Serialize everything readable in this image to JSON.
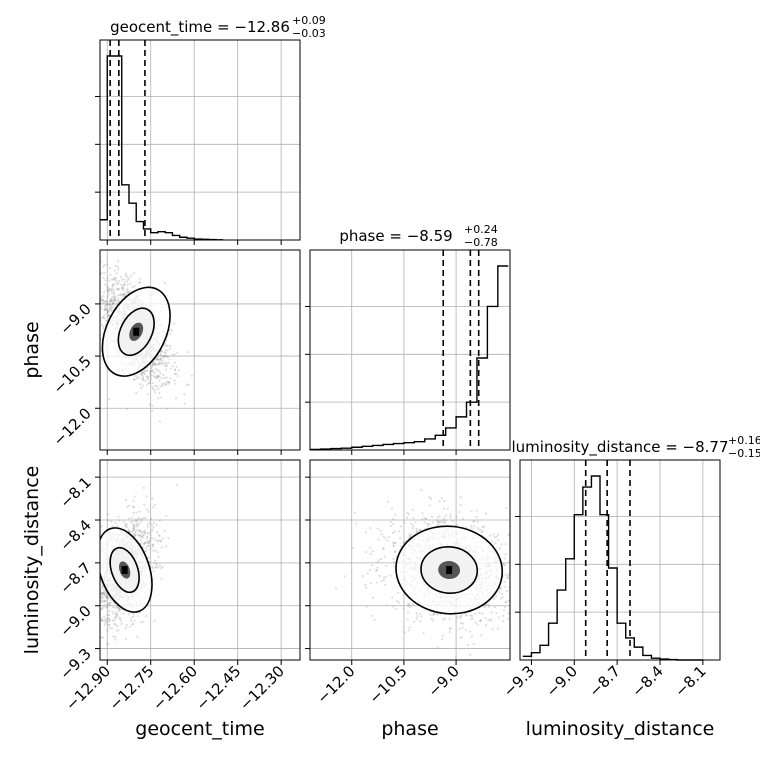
{
  "chart_data": {
    "type": "corner",
    "parameters": [
      "geocent_time",
      "phase",
      "luminosity_distance"
    ],
    "axis_labels": {
      "geocent_time": "geocent_time",
      "phase": "phase",
      "luminosity_distance": "luminosity_distance"
    },
    "titles": [
      {
        "param": "geocent_time",
        "text": "geocent_time = −12.86",
        "plus": "+0.09",
        "minus": "−0.03"
      },
      {
        "param": "phase",
        "text": "phase = −8.59",
        "plus": "+0.24",
        "minus": "−0.78"
      },
      {
        "param": "luminosity_distance",
        "text": "luminosity_distance = −8.77",
        "plus": "+0.16",
        "minus": "−0.15"
      }
    ],
    "ranges": {
      "geocent_time": [
        -12.925,
        -12.235
      ],
      "phase": [
        -13.2,
        -7.45
      ],
      "luminosity_distance": [
        -9.38,
        -7.98
      ]
    },
    "ticks": {
      "geocent_time": {
        "values": [
          -12.9,
          -12.75,
          -12.6,
          -12.45,
          -12.3
        ],
        "labels": [
          "−12.90",
          "−12.75",
          "−12.60",
          "−12.45",
          "−12.30"
        ]
      },
      "phase": {
        "values": [
          -12.0,
          -10.5,
          -9.0
        ],
        "labels": [
          "−12.0",
          "−10.5",
          "−9.0"
        ]
      },
      "luminosity_distance": {
        "values": [
          -9.3,
          -9.0,
          -8.7,
          -8.4,
          -8.1
        ],
        "labels": [
          "−9.3",
          "−9.0",
          "−8.7",
          "−8.4",
          "−8.1"
        ]
      }
    },
    "histograms": {
      "geocent_time": {
        "bin_edges": [
          -12.925,
          -12.9,
          -12.875,
          -12.85,
          -12.825,
          -12.8,
          -12.775,
          -12.75,
          -12.725,
          -12.7,
          -12.675,
          -12.65,
          -12.625,
          -12.6,
          -12.575,
          -12.55,
          -12.525,
          -12.5
        ],
        "counts": [
          0.11,
          1.0,
          1.0,
          0.3,
          0.2,
          0.1,
          0.06,
          0.04,
          0.045,
          0.04,
          0.025,
          0.015,
          0.01,
          0.005,
          0.004,
          0.002,
          0.001
        ],
        "quantiles": [
          -12.89,
          -12.86,
          -12.77
        ]
      },
      "phase": {
        "bin_edges": [
          -13.2,
          -12.9,
          -12.6,
          -12.3,
          -12.0,
          -11.7,
          -11.4,
          -11.1,
          -10.8,
          -10.5,
          -10.2,
          -9.9,
          -9.6,
          -9.3,
          -9.0,
          -8.7,
          -8.4,
          -8.1,
          -7.8,
          -7.5
        ],
        "counts": [
          0.003,
          0.005,
          0.008,
          0.01,
          0.015,
          0.02,
          0.025,
          0.03,
          0.035,
          0.04,
          0.045,
          0.06,
          0.08,
          0.12,
          0.18,
          0.26,
          0.5,
          0.78,
          1.0
        ],
        "quantiles": [
          -9.37,
          -8.59,
          -8.35
        ]
      },
      "luminosity_distance": {
        "bin_edges": [
          -9.36,
          -9.3,
          -9.24,
          -9.18,
          -9.12,
          -9.06,
          -9.0,
          -8.94,
          -8.88,
          -8.82,
          -8.76,
          -8.7,
          -8.64,
          -8.58,
          -8.52,
          -8.46,
          -8.4,
          -8.34,
          -8.28,
          -8.22,
          -8.16,
          -8.1
        ],
        "counts": [
          0.02,
          0.04,
          0.08,
          0.2,
          0.38,
          0.55,
          0.79,
          0.94,
          1.0,
          0.79,
          0.5,
          0.2,
          0.12,
          0.07,
          0.025,
          0.01,
          0.005,
          0.002,
          0.0,
          0.0,
          0.0
        ],
        "quantiles": [
          -8.92,
          -8.77,
          -8.61
        ]
      }
    },
    "scatter": {
      "phase_vs_geocent_time": {
        "center": [
          -12.8,
          -9.8
        ],
        "spread": [
          0.06,
          0.8
        ],
        "correlation": -0.6
      },
      "luminosity_distance_vs_geocent_time": {
        "center": [
          -12.84,
          -8.75
        ],
        "spread": [
          0.05,
          0.18
        ],
        "correlation": 0.35
      },
      "luminosity_distance_vs_phase": {
        "center": [
          -9.2,
          -8.75
        ],
        "spread": [
          0.9,
          0.18
        ],
        "correlation": -0.2
      }
    },
    "grid": true,
    "colors": {
      "line": "#000000",
      "points": "#8a8a8a",
      "grid": "#b0b0b0",
      "density": "#000000"
    }
  }
}
